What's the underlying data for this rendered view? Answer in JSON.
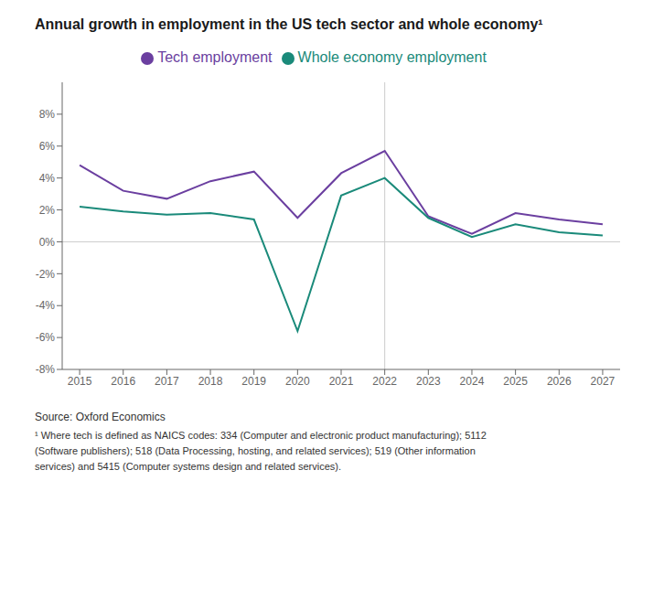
{
  "chart_data": {
    "type": "line",
    "title": "Annual growth in employment in the US tech sector and whole economy¹",
    "x": [
      2015,
      2016,
      2017,
      2018,
      2019,
      2020,
      2021,
      2022,
      2023,
      2024,
      2025,
      2026,
      2027
    ],
    "series": [
      {
        "name": "Tech employment",
        "color": "#6b3fa0",
        "values": [
          4.8,
          3.2,
          2.7,
          3.8,
          4.4,
          1.5,
          4.3,
          5.7,
          1.6,
          0.5,
          1.8,
          1.4,
          1.1
        ]
      },
      {
        "name": "Whole economy employment",
        "color": "#1a8a7a",
        "values": [
          2.2,
          1.9,
          1.7,
          1.8,
          1.4,
          -5.6,
          2.9,
          4.0,
          1.5,
          0.3,
          1.1,
          0.6,
          0.4
        ]
      }
    ],
    "xlim": [
      2014.6,
      2027.4
    ],
    "xticks": [
      2015,
      2016,
      2017,
      2018,
      2019,
      2020,
      2021,
      2022,
      2023,
      2024,
      2025,
      2026,
      2027
    ],
    "ylim": [
      -8,
      10
    ],
    "yticks": [
      {
        "value": -8,
        "label": "-8%"
      },
      {
        "value": -6,
        "label": "-6%"
      },
      {
        "value": -4,
        "label": "-4%"
      },
      {
        "value": -2,
        "label": "-2%"
      },
      {
        "value": 0,
        "label": "0%"
      },
      {
        "value": 2,
        "label": "2%"
      },
      {
        "value": 4,
        "label": "4%"
      },
      {
        "value": 6,
        "label": "6%"
      },
      {
        "value": 8,
        "label": "8%"
      }
    ],
    "vline_x": 2022,
    "hline_y": 0,
    "annotations": [
      "Source: Oxford Economics",
      "¹ Where tech is defined as NAICS codes: 334 (Computer and electronic product manufacturing); 5112\n(Software publishers); 518 (Data Processing, hosting, and related services); 519 (Other information\nservices) and 5415 (Computer systems design and related services)."
    ],
    "grid": false,
    "legend": "top"
  }
}
